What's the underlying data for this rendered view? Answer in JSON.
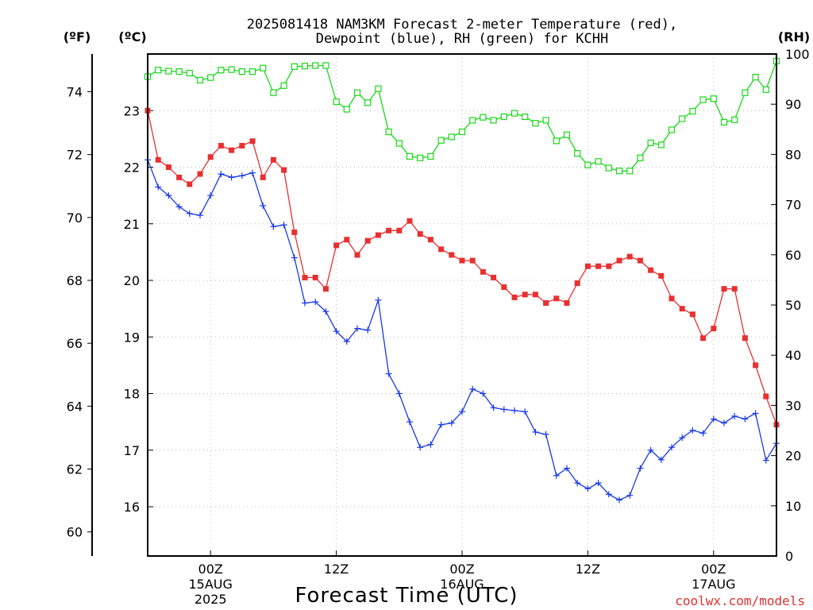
{
  "chart_data": {
    "type": "line",
    "title_line1": "2025081418 NAM3KM Forecast 2-meter Temperature (red),",
    "title_line2": "Dewpoint (blue), RH (green) for KCHH",
    "xlabel": "Forecast Time (UTC)",
    "credit": "coolwx.com/models",
    "unit_labels": {
      "fahrenheit": "(ºF)",
      "celsius": "(ºC)",
      "rh": "(RH)"
    },
    "grid": true,
    "x_range_hours": [
      0,
      60
    ],
    "x_ticks": [
      {
        "hour": 6,
        "label": "00Z",
        "sub1": "15AUG",
        "sub2": "2025"
      },
      {
        "hour": 18,
        "label": "12Z",
        "sub1": "",
        "sub2": ""
      },
      {
        "hour": 30,
        "label": "00Z",
        "sub1": "16AUG",
        "sub2": ""
      },
      {
        "hour": 42,
        "label": "12Z",
        "sub1": "",
        "sub2": ""
      },
      {
        "hour": 54,
        "label": "00Z",
        "sub1": "17AUG",
        "sub2": ""
      }
    ],
    "celsius_axis": {
      "min": 15.13,
      "max": 24.0,
      "ticks": [
        16,
        17,
        18,
        19,
        20,
        21,
        22,
        23
      ]
    },
    "fahrenheit_axis": {
      "ticks": [
        60,
        62,
        64,
        66,
        68,
        70,
        72,
        74
      ]
    },
    "rh_axis": {
      "min": 0,
      "max": 100,
      "ticks": [
        0,
        10,
        20,
        30,
        40,
        50,
        60,
        70,
        80,
        90,
        100
      ]
    },
    "series": [
      {
        "name": "Temperature",
        "units": "C",
        "color": "#e83030",
        "marker": "square-filled",
        "values": [
          23.0,
          22.13,
          22.0,
          21.82,
          21.7,
          21.88,
          22.18,
          22.38,
          22.3,
          22.38,
          22.46,
          21.82,
          22.13,
          21.95,
          20.85,
          20.05,
          20.05,
          19.85,
          20.62,
          20.72,
          20.45,
          20.7,
          20.8,
          20.88,
          20.88,
          21.05,
          20.82,
          20.72,
          20.55,
          20.45,
          20.35,
          20.35,
          20.15,
          20.05,
          19.88,
          19.7,
          19.75,
          19.75,
          19.6,
          19.68,
          19.6,
          19.95,
          20.25,
          20.25,
          20.25,
          20.35,
          20.42,
          20.35,
          20.18,
          20.08,
          19.68,
          19.5,
          19.4,
          18.98,
          19.15,
          19.85,
          19.85,
          18.98,
          18.5,
          17.95,
          17.45
        ]
      },
      {
        "name": "Dewpoint",
        "units": "C",
        "color": "#1838e8",
        "marker": "plus",
        "values": [
          22.13,
          21.65,
          21.5,
          21.3,
          21.18,
          21.15,
          21.5,
          21.88,
          21.82,
          21.85,
          21.9,
          21.32,
          20.95,
          20.98,
          20.4,
          19.6,
          19.62,
          19.45,
          19.1,
          18.92,
          19.15,
          19.12,
          19.65,
          18.35,
          18.0,
          17.5,
          17.05,
          17.1,
          17.45,
          17.48,
          17.68,
          18.08,
          18.0,
          17.75,
          17.72,
          17.7,
          17.68,
          17.32,
          17.28,
          16.55,
          16.68,
          16.42,
          16.32,
          16.42,
          16.22,
          16.12,
          16.2,
          16.68,
          17.0,
          16.83,
          17.05,
          17.22,
          17.35,
          17.3,
          17.55,
          17.48,
          17.6,
          17.55,
          17.65,
          16.82,
          17.12
        ]
      },
      {
        "name": "RH",
        "units": "%",
        "color": "#18d818",
        "marker": "square-open",
        "values": [
          95.5,
          96.8,
          96.6,
          96.5,
          96.2,
          94.8,
          95.3,
          96.8,
          96.9,
          96.5,
          96.5,
          97.2,
          92.3,
          93.7,
          97.5,
          97.6,
          97.7,
          97.7,
          90.5,
          89.0,
          92.3,
          90.3,
          93.1,
          84.5,
          82.2,
          79.6,
          79.3,
          79.6,
          82.8,
          83.5,
          84.5,
          86.8,
          87.4,
          86.8,
          87.5,
          88.2,
          87.5,
          86.2,
          86.8,
          82.7,
          83.9,
          80.2,
          77.9,
          78.6,
          77.3,
          76.7,
          76.7,
          79.3,
          82.3,
          81.9,
          84.9,
          87.1,
          88.6,
          90.9,
          91.1,
          86.4,
          86.9,
          92.3,
          95.4,
          92.9,
          98.6
        ]
      }
    ]
  }
}
